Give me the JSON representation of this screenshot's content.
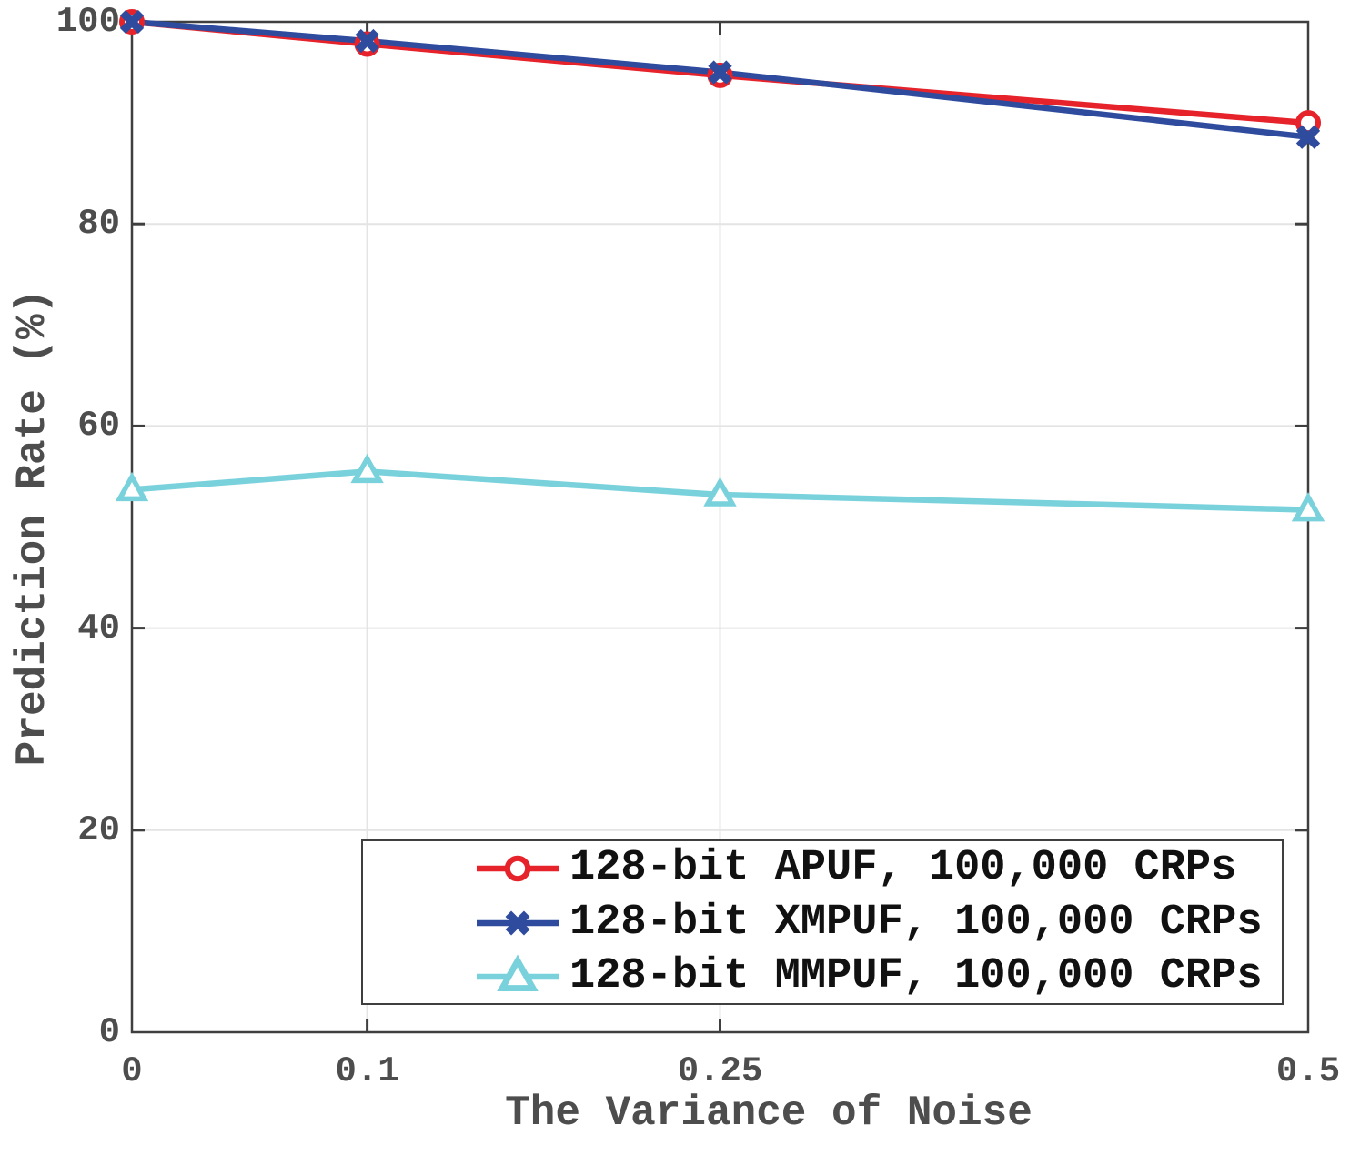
{
  "chart_data": {
    "type": "line",
    "xlabel": "The Variance of Noise",
    "ylabel": "Prediction Rate (%)",
    "xlim": [
      0,
      0.5
    ],
    "ylim": [
      0,
      100
    ],
    "x": [
      0,
      0.1,
      0.25,
      0.5
    ],
    "xtick_labels": [
      "0",
      "0.1",
      "0.25",
      "0.5"
    ],
    "ytick_values": [
      0,
      20,
      40,
      60,
      80,
      100
    ],
    "ytick_labels": [
      "0",
      "20",
      "40",
      "60",
      "80",
      "100"
    ],
    "grid": true,
    "legend_position": "inside-bottom-center",
    "series": [
      {
        "name": "128-bit APUF, 100,000 CRPs",
        "color": "#E6232B",
        "marker": "circle",
        "values": [
          100,
          97.8,
          94.7,
          90.0
        ]
      },
      {
        "name": "128-bit XMPUF, 100,000 CRPs",
        "color": "#2F4B9E",
        "marker": "x",
        "values": [
          100,
          98.1,
          95.0,
          88.6
        ]
      },
      {
        "name": "128-bit MMPUF, 100,000 CRPs",
        "color": "#79D1DC",
        "marker": "triangle-up",
        "values": [
          53.7,
          55.5,
          53.2,
          51.7
        ]
      }
    ],
    "colors": {
      "axis": "#3F3F3F",
      "tick_text": "#4D4D4D",
      "grid": "#E4E4E4",
      "legend_text": "#111111",
      "background": "#FFFFFF"
    }
  }
}
